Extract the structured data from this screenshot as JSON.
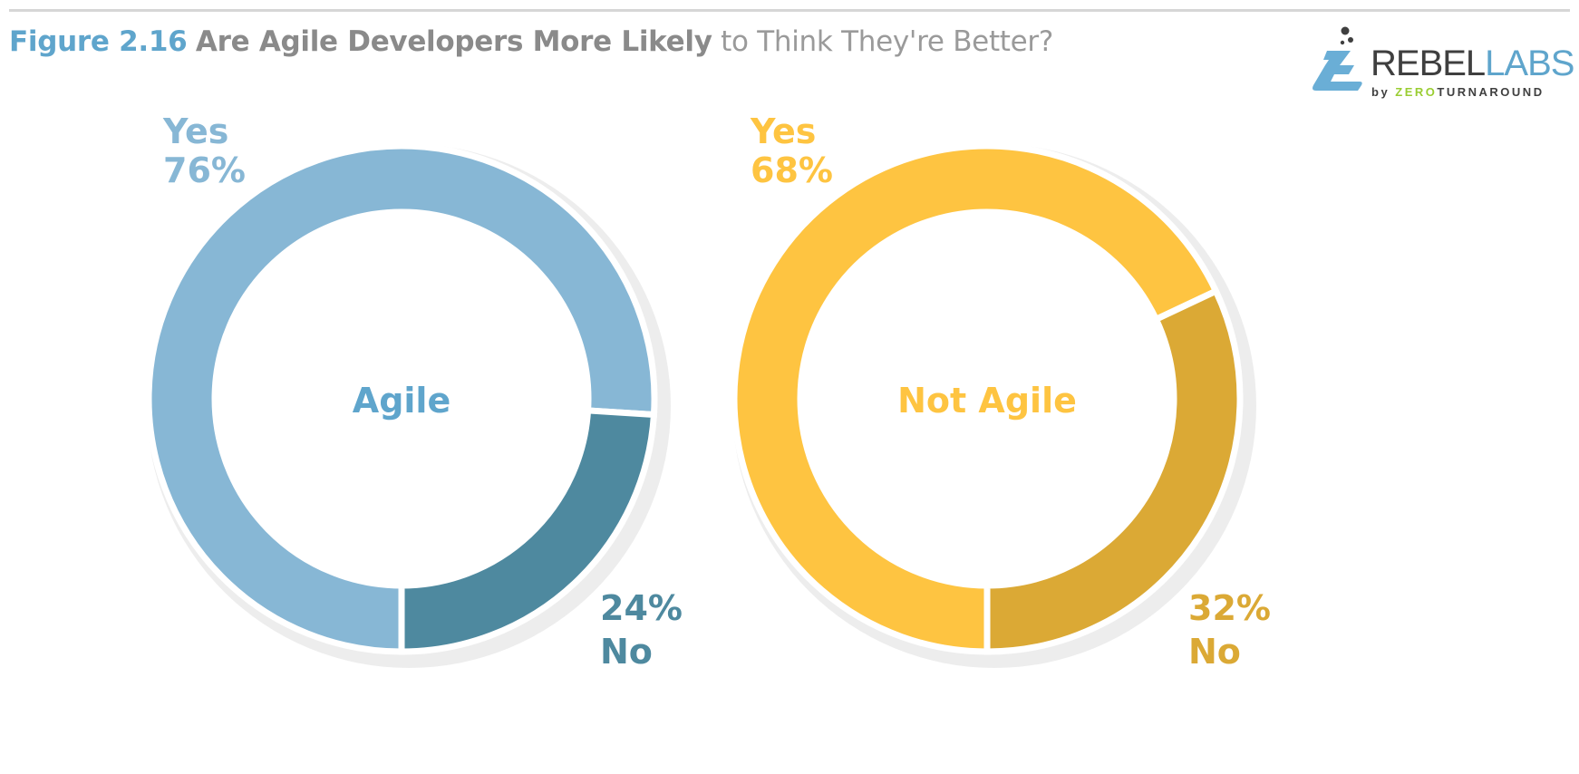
{
  "heading": {
    "figure": "Figure 2.16",
    "bold": "Are Agile Developers More Likely",
    "rest": "to Think They're Better?"
  },
  "logo": {
    "text_primary": "REBEL",
    "text_accent": "LABS",
    "by": "by",
    "byline_accent": "ZERO",
    "byline_rest": "TURNAROUND"
  },
  "colors": {
    "agile_yes": "#87b7d5",
    "agile_no": "#4e899f",
    "not_agile_yes": "#fec441",
    "not_agile_no": "#dba935",
    "shadow": "#ededed",
    "title_blue": "#5fa5cc",
    "title_gray": "#8a8a8a"
  },
  "chart_data": [
    {
      "type": "pie",
      "variant": "donut",
      "title": "Agile",
      "slices": [
        {
          "label": "Yes",
          "value": 76
        },
        {
          "label": "No",
          "value": 24
        }
      ]
    },
    {
      "type": "pie",
      "variant": "donut",
      "title": "Not Agile",
      "slices": [
        {
          "label": "Yes",
          "value": 68
        },
        {
          "label": "No",
          "value": 32
        }
      ]
    }
  ]
}
